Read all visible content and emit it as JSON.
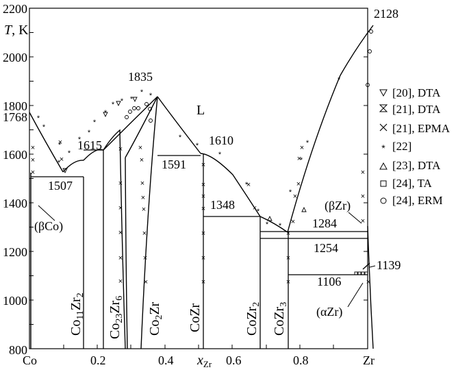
{
  "axes": {
    "y_axis_label_symbol": "T",
    "y_axis_label_unit": ", K",
    "x_axis_label_symbol": "x",
    "x_axis_label_subscript": "Zr",
    "x_left_end": "Co",
    "x_right_end": "Zr",
    "x_ticks": [
      "0.2",
      "0.4",
      "0.6",
      "0.8"
    ],
    "y_ticks": [
      "800",
      "1000",
      "1200",
      "1400",
      "1600",
      "1800",
      "2000",
      "2200"
    ],
    "y_extra_left": "1768",
    "y_extra_right": "2128"
  },
  "temperature_labels": {
    "t1835": "1835",
    "t1610": "1610",
    "t1615": "1615",
    "t1591": "1591",
    "t1507": "1507",
    "t1348": "1348",
    "t1284": "1284",
    "t1254": "1254",
    "t1106": "1106",
    "t1139": "1139"
  },
  "phase_labels": {
    "liquid": "L",
    "beta_co": "(βCo)",
    "beta_zr": "(βZr)",
    "alpha_zr": "(αZr)"
  },
  "compounds": [
    {
      "base1": "Co",
      "sub1": "11",
      "base2": "Zr",
      "sub2": "2"
    },
    {
      "base1": "Co",
      "sub1": "23",
      "base2": "Zr",
      "sub2": "6"
    },
    {
      "base1": "Co",
      "sub1": "2",
      "base2": "Zr",
      "sub2": ""
    },
    {
      "base1": "CoZr",
      "sub1": "",
      "base2": "",
      "sub2": ""
    },
    {
      "base1": "CoZr",
      "sub1": "2",
      "base2": "",
      "sub2": ""
    },
    {
      "base1": "CoZr",
      "sub1": "3",
      "base2": "",
      "sub2": ""
    }
  ],
  "legend": [
    {
      "symbol": "triangle-down",
      "label": "[20], DTA"
    },
    {
      "symbol": "hourglass",
      "label": "[21], DTA"
    },
    {
      "symbol": "cross",
      "label": "[21], EPMA"
    },
    {
      "symbol": "asterisk",
      "label": "[22]"
    },
    {
      "symbol": "triangle-up",
      "label": "[23], DTA"
    },
    {
      "symbol": "square",
      "label": "[24], TA"
    },
    {
      "symbol": "circle",
      "label": "[24], ERM"
    }
  ],
  "colors": {
    "ink": "#000000",
    "background": "#ffffff"
  }
}
